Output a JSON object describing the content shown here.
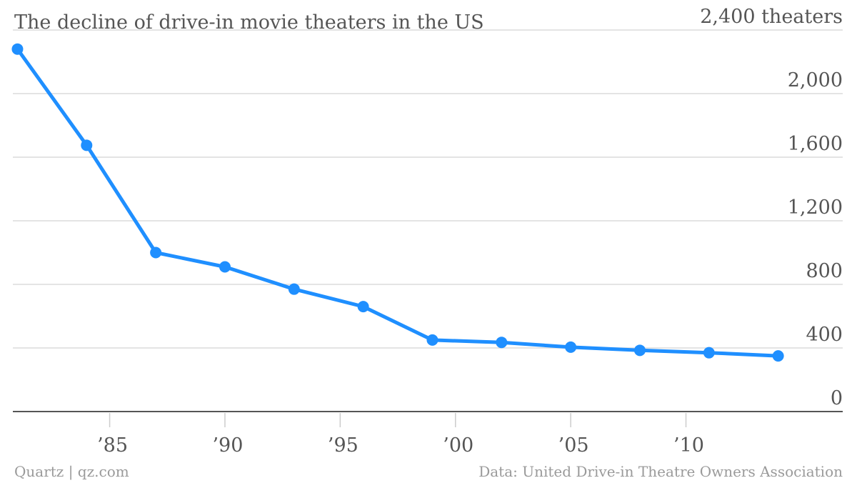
{
  "chart_data": {
    "type": "line",
    "title": "The decline of drive-in movie theaters in the US",
    "unit_label": "2,400 theaters",
    "xlabel": "",
    "ylabel": "",
    "xlim": [
      1980.8,
      2016.8
    ],
    "ylim": [
      0,
      2400
    ],
    "y_ticks": [
      {
        "value": 0,
        "label": "0"
      },
      {
        "value": 400,
        "label": "400"
      },
      {
        "value": 800,
        "label": "800"
      },
      {
        "value": 1200,
        "label": "1,200"
      },
      {
        "value": 1600,
        "label": "1,600"
      },
      {
        "value": 2000,
        "label": "2,000"
      },
      {
        "value": 2400,
        "label": "2,400 theaters"
      }
    ],
    "x_ticks": [
      {
        "value": 1985,
        "label": "’85"
      },
      {
        "value": 1990,
        "label": "’90"
      },
      {
        "value": 1995,
        "label": "’95"
      },
      {
        "value": 2000,
        "label": "’00"
      },
      {
        "value": 2005,
        "label": "’05"
      },
      {
        "value": 2010,
        "label": "’10"
      }
    ],
    "series": [
      {
        "name": "Drive-in theaters",
        "color": "#1f8fff",
        "points": [
          {
            "x": 1981,
            "y": 2280
          },
          {
            "x": 1984,
            "y": 1675
          },
          {
            "x": 1987,
            "y": 1000
          },
          {
            "x": 1990,
            "y": 910
          },
          {
            "x": 1993,
            "y": 770
          },
          {
            "x": 1996,
            "y": 660
          },
          {
            "x": 1999,
            "y": 450
          },
          {
            "x": 2002,
            "y": 435
          },
          {
            "x": 2005,
            "y": 405
          },
          {
            "x": 2008,
            "y": 385
          },
          {
            "x": 2011,
            "y": 370
          },
          {
            "x": 2014,
            "y": 350
          }
        ]
      }
    ],
    "grid": true,
    "legend": "none"
  },
  "footer": {
    "credit": "Quartz | qz.com",
    "source": "Data: United Drive-in Theatre Owners Association"
  }
}
